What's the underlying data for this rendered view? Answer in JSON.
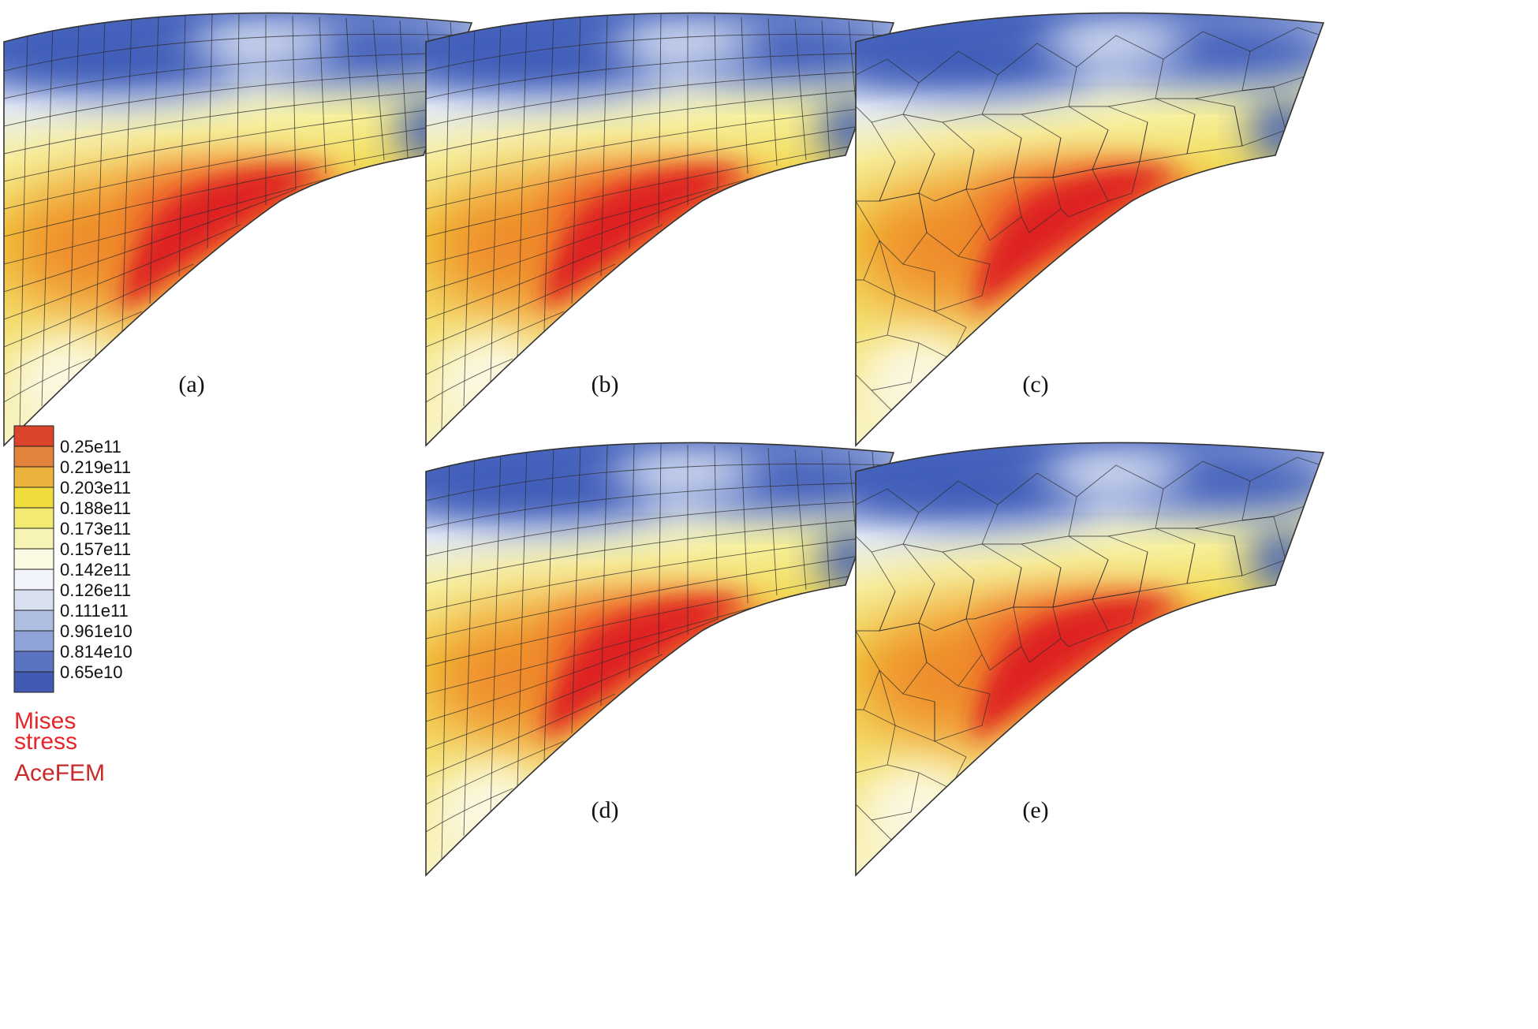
{
  "figure": {
    "panels": [
      {
        "id": "a",
        "caption": "(a)",
        "mesh": "structured-quad"
      },
      {
        "id": "b",
        "caption": "(b)",
        "mesh": "structured-quad"
      },
      {
        "id": "c",
        "caption": "(c)",
        "mesh": "polygonal"
      },
      {
        "id": "d",
        "caption": "(d)",
        "mesh": "structured-quad"
      },
      {
        "id": "e",
        "caption": "(e)",
        "mesh": "polygonal"
      }
    ],
    "legend": {
      "levels": [
        "0.25e11",
        "0.219e11",
        "0.203e11",
        "0.188e11",
        "0.173e11",
        "0.157e11",
        "0.142e11",
        "0.126e11",
        "0.111e11",
        "0.961e10",
        "0.814e10",
        "0.65e10"
      ],
      "colors": [
        "#d9442b",
        "#e3823a",
        "#ecb33c",
        "#f1dc3d",
        "#f3ea74",
        "#f7f3b4",
        "#fbfbe4",
        "#f1f4fa",
        "#d8e0f0",
        "#aebfe2",
        "#8fa3d6",
        "#5a74c2",
        "#4059b3"
      ],
      "title_line1": "Mises",
      "title_line2": "stress",
      "software": "AceFEM",
      "title_color": "#e8262a"
    },
    "colormap": {
      "high": "#de2323",
      "orange": "#ef8a2a",
      "yellow": "#f3e24a",
      "white": "#fbfbf2",
      "blue": "#3d5cb8"
    }
  }
}
